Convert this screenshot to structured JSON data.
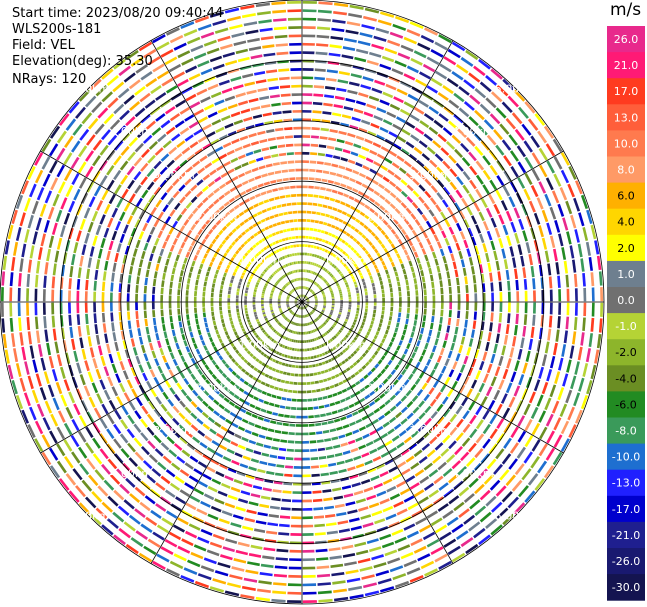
{
  "header": {
    "start_time": "Start time: 2023/08/20 09:40:44",
    "instrument": "WLS200s-181",
    "field": "Field: VEL",
    "elevation": "Elevation(deg): 35.30",
    "nrays": "NRays: 120"
  },
  "colorbar": {
    "unit": "m/s",
    "labels": [
      "26.0",
      "21.0",
      "17.0",
      "13.0",
      "10.0",
      "8.0",
      "6.0",
      "4.0",
      "2.0",
      "1.0",
      "0.0",
      "-1.0",
      "-2.0",
      "-4.0",
      "-6.0",
      "-8.0",
      "-10.0",
      "-13.0",
      "-17.0",
      "-21.0",
      "-26.0",
      "-30.0"
    ],
    "colors": [
      "#e8298c",
      "#ff1a75",
      "#ff3b1f",
      "#ff5e3a",
      "#ff7a4e",
      "#ff9a66",
      "#ffb000",
      "#ffd600",
      "#ffff00",
      "#6e7f8f",
      "#707070",
      "#b5d335",
      "#8db52b",
      "#6b8e23",
      "#228b22",
      "#3a9a5a",
      "#1e6fd0",
      "#2020ff",
      "#0000cd",
      "#1f1f8f",
      "#191970",
      "#141450"
    ]
  },
  "chart_data": {
    "type": "ppi",
    "field": "VEL",
    "units": "m/s",
    "nrays": 120,
    "elevation_deg": 35.3,
    "range_ring_labels": [
      "1.00km",
      "2.00km",
      "3.00km",
      "4.00km",
      "5.00km"
    ],
    "range_rings_km": [
      1,
      2,
      3,
      4,
      5
    ],
    "color_scale": [
      -30.0,
      -26.0,
      -21.0,
      -17.0,
      -13.0,
      -10.0,
      -8.0,
      -6.0,
      -4.0,
      -2.0,
      -1.0,
      0.0,
      1.0,
      2.0,
      4.0,
      6.0,
      8.0,
      10.0,
      13.0,
      17.0,
      21.0,
      26.0
    ]
  }
}
